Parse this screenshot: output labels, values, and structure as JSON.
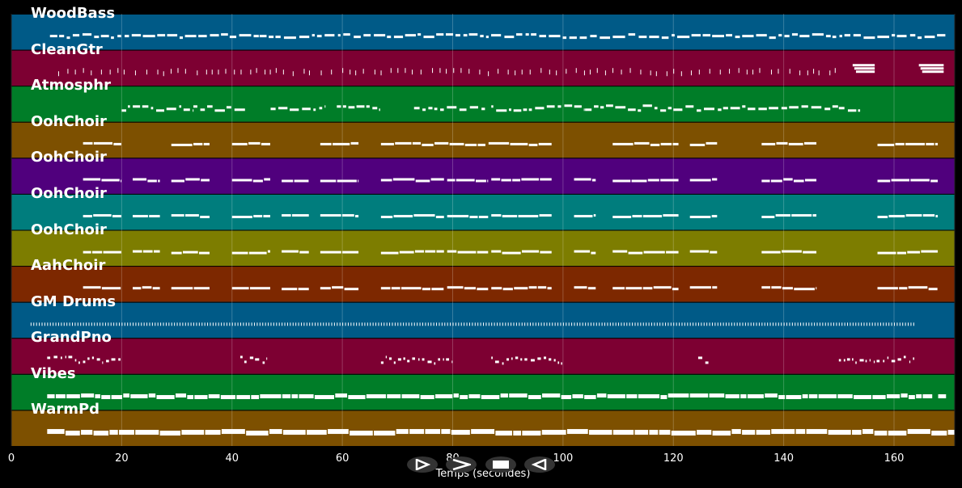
{
  "chart_data": {
    "type": "piano-roll",
    "title": "",
    "xlabel": "Temps (secondes)",
    "ylabel": "",
    "xlim": [
      0,
      171
    ],
    "xticks": [
      0,
      20,
      40,
      60,
      80,
      100,
      120,
      140,
      160
    ],
    "grid": true,
    "note_color": "#ffffff",
    "tracks": [
      {
        "name": "WoodBass",
        "color": "#005a87",
        "style": "bass",
        "segments": [
          [
            7,
            45
          ],
          [
            45,
            169.5
          ]
        ]
      },
      {
        "name": "CleanGtr",
        "color": "#7d0032",
        "style": "stab",
        "segments": [
          [
            8.5,
            12
          ],
          [
            13,
            150
          ]
        ],
        "extra": [
          [
            152.5,
            156.5
          ],
          [
            164.5,
            169
          ]
        ]
      },
      {
        "name": "Atmosphr",
        "color": "#007d28",
        "style": "melody",
        "segments": [
          [
            20,
            33
          ],
          [
            33,
            42.5
          ],
          [
            47,
            57
          ],
          [
            59,
            67
          ],
          [
            73,
            86
          ],
          [
            87,
            104
          ],
          [
            104,
            120
          ],
          [
            120,
            150
          ],
          [
            150,
            154
          ]
        ]
      },
      {
        "name": "OohChoir",
        "color": "#7d5000",
        "style": "chord",
        "segments": [
          [
            13,
            20
          ],
          [
            29,
            36
          ],
          [
            40,
            47
          ],
          [
            56,
            63
          ],
          [
            67,
            86
          ],
          [
            86.5,
            98
          ],
          [
            109,
            121
          ],
          [
            123,
            128
          ],
          [
            136,
            146
          ],
          [
            157,
            168
          ]
        ]
      },
      {
        "name": "OohChoir",
        "color": "#50007d",
        "style": "chord",
        "segments": [
          [
            13,
            20
          ],
          [
            22,
            27
          ],
          [
            29,
            36
          ],
          [
            40,
            47
          ],
          [
            49,
            54
          ],
          [
            56,
            63
          ],
          [
            67,
            78.5
          ],
          [
            79,
            86.5
          ],
          [
            87,
            98
          ],
          [
            102,
            106
          ],
          [
            109,
            121
          ],
          [
            123,
            128
          ],
          [
            136,
            146
          ],
          [
            157,
            168
          ]
        ]
      },
      {
        "name": "OohChoir",
        "color": "#007d7d",
        "style": "chord",
        "segments": [
          [
            13,
            20
          ],
          [
            22,
            27
          ],
          [
            29,
            36
          ],
          [
            40,
            47
          ],
          [
            49,
            54
          ],
          [
            56,
            63
          ],
          [
            67,
            78.5
          ],
          [
            79,
            86.5
          ],
          [
            87,
            98
          ],
          [
            102,
            106
          ],
          [
            109,
            121
          ],
          [
            123,
            128
          ],
          [
            136,
            146
          ],
          [
            157,
            168
          ]
        ]
      },
      {
        "name": "OohChoir",
        "color": "#7d7d00",
        "style": "chord",
        "segments": [
          [
            13,
            20
          ],
          [
            22,
            27
          ],
          [
            29,
            36
          ],
          [
            40,
            47
          ],
          [
            49,
            54
          ],
          [
            56,
            63
          ],
          [
            67,
            78.5
          ],
          [
            79,
            86.5
          ],
          [
            87,
            98
          ],
          [
            102,
            106
          ],
          [
            109,
            121
          ],
          [
            123,
            128
          ],
          [
            136,
            146
          ],
          [
            157,
            168
          ]
        ]
      },
      {
        "name": "AahChoir",
        "color": "#7d2800",
        "style": "chord",
        "segments": [
          [
            13,
            20
          ],
          [
            22,
            27
          ],
          [
            29,
            36
          ],
          [
            40,
            47
          ],
          [
            49,
            54
          ],
          [
            56,
            63
          ],
          [
            67,
            78.5
          ],
          [
            79,
            86.5
          ],
          [
            87,
            98
          ],
          [
            102,
            106
          ],
          [
            109,
            121
          ],
          [
            123,
            128
          ],
          [
            136,
            146
          ],
          [
            157,
            168
          ]
        ]
      },
      {
        "name": "GM Drums",
        "color": "#005a87",
        "style": "drums",
        "segments": [
          [
            3.5,
            164
          ]
        ]
      },
      {
        "name": "GrandPno",
        "color": "#7d0032",
        "style": "piano",
        "segments": [
          [
            6.5,
            20
          ],
          [
            41.5,
            46.5
          ],
          [
            67,
            80
          ],
          [
            87,
            100
          ],
          [
            124.5,
            126.5
          ],
          [
            150,
            164
          ]
        ]
      },
      {
        "name": "Vibes",
        "color": "#007d28",
        "style": "pad",
        "segments": [
          [
            6.5,
            167
          ],
          [
            168,
            169.5
          ]
        ]
      },
      {
        "name": "WarmPd",
        "color": "#7d5000",
        "style": "warm",
        "segments": [
          [
            6.5,
            171
          ]
        ]
      }
    ]
  },
  "controls": [
    {
      "name": "play-icon"
    },
    {
      "name": "forward-icon"
    },
    {
      "name": "stop-icon"
    },
    {
      "name": "rewind-icon"
    }
  ]
}
